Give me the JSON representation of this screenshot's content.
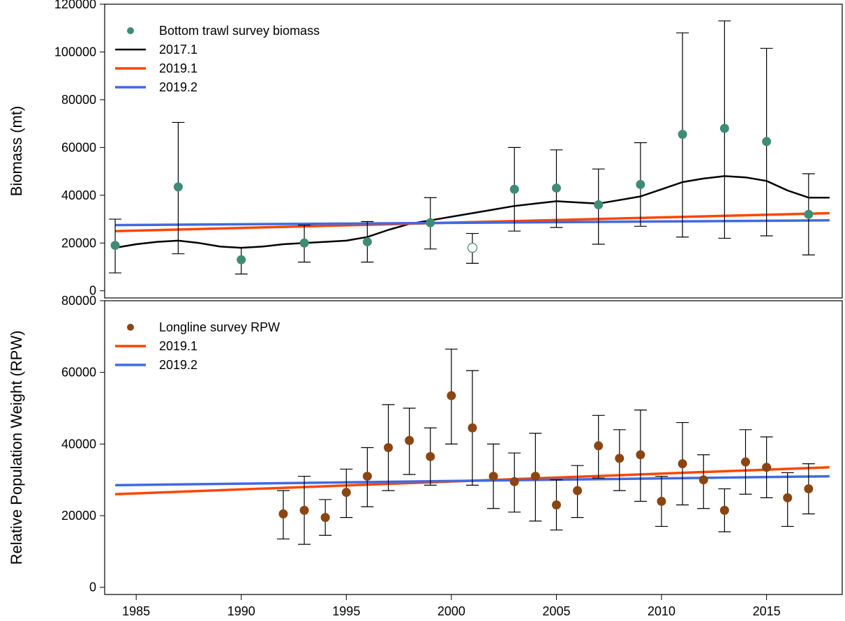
{
  "chart_data": [
    {
      "type": "line",
      "panel": "top",
      "ylabel": "Biomass (mt)",
      "xlim": [
        1983.5,
        2018.6
      ],
      "ylim": [
        -3000,
        120000
      ],
      "yticks": [
        0,
        20000,
        40000,
        60000,
        80000,
        100000,
        120000
      ],
      "grid": false,
      "legend_position": "top-left",
      "legend": [
        "Bottom trawl survey biomass",
        "2017.1",
        "2019.1",
        "2019.2"
      ],
      "colors": {
        "points": "#3f8c76",
        "2017.1": "#000000",
        "2019.1": "#ff4500",
        "2019.2": "#4169e1"
      },
      "points": {
        "name": "Bottom trawl survey biomass",
        "x": [
          1984,
          1987,
          1990,
          1993,
          1996,
          1999,
          2001,
          2003,
          2005,
          2007,
          2009,
          2011,
          2013,
          2015,
          2017
        ],
        "y": [
          19000,
          43500,
          13000,
          20000,
          20500,
          28500,
          18000,
          42500,
          43000,
          36000,
          44500,
          65500,
          68000,
          62500,
          32000
        ],
        "low": [
          7500,
          15500,
          7000,
          12000,
          12000,
          17500,
          11500,
          25000,
          26500,
          19500,
          27000,
          22500,
          22000,
          23000,
          15000
        ],
        "high": [
          30000,
          70500,
          18000,
          27500,
          29000,
          39000,
          24000,
          60000,
          59000,
          51000,
          62000,
          108000,
          113000,
          101500,
          49000
        ],
        "open": [
          false,
          false,
          false,
          false,
          false,
          false,
          true,
          false,
          false,
          false,
          false,
          false,
          false,
          false,
          false
        ]
      },
      "series": [
        {
          "name": "2017.1",
          "x": [
            1984,
            1985,
            1986,
            1987,
            1988,
            1989,
            1990,
            1991,
            1992,
            1993,
            1994,
            1995,
            1996,
            1997,
            1998,
            1999,
            2000,
            2001,
            2002,
            2003,
            2004,
            2005,
            2006,
            2007,
            2008,
            2009,
            2010,
            2011,
            2012,
            2013,
            2014,
            2015,
            2016,
            2017,
            2018
          ],
          "y": [
            18000,
            19500,
            20500,
            21000,
            20000,
            18500,
            18000,
            18500,
            19500,
            20000,
            20500,
            21000,
            22500,
            25500,
            28000,
            29500,
            31000,
            32500,
            34000,
            35500,
            36500,
            37500,
            37000,
            36500,
            38000,
            39500,
            42500,
            45500,
            47000,
            48000,
            47500,
            46000,
            42000,
            39000,
            39000
          ]
        },
        {
          "name": "2019.1",
          "x": [
            1984,
            2018
          ],
          "y": [
            25000,
            32500
          ]
        },
        {
          "name": "2019.2",
          "x": [
            1984,
            2018
          ],
          "y": [
            27500,
            29500
          ]
        }
      ]
    },
    {
      "type": "line",
      "panel": "bottom",
      "ylabel": "Relative Population Weight (RPW)",
      "xlim": [
        1983.5,
        2018.6
      ],
      "ylim": [
        -2000,
        80000
      ],
      "yticks": [
        0,
        20000,
        40000,
        60000,
        80000
      ],
      "xticks": [
        1985,
        1990,
        1995,
        2000,
        2005,
        2010,
        2015
      ],
      "grid": false,
      "legend_position": "top-left",
      "legend": [
        "Longline survey RPW",
        "2019.1",
        "2019.2"
      ],
      "colors": {
        "points": "#8b4513",
        "2019.1": "#ff4500",
        "2019.2": "#4169e1"
      },
      "points": {
        "name": "Longline survey RPW",
        "x": [
          1992,
          1993,
          1994,
          1995,
          1996,
          1997,
          1998,
          1999,
          2000,
          2001,
          2002,
          2003,
          2004,
          2005,
          2006,
          2007,
          2008,
          2009,
          2010,
          2011,
          2012,
          2013,
          2014,
          2015,
          2016,
          2017
        ],
        "y": [
          20500,
          21500,
          19500,
          26500,
          31000,
          39000,
          41000,
          36500,
          53500,
          44500,
          31000,
          29500,
          31000,
          23000,
          27000,
          39500,
          36000,
          37000,
          24000,
          34500,
          30000,
          21500,
          35000,
          33500,
          25000,
          27500
        ],
        "low": [
          13500,
          12000,
          14500,
          19500,
          22500,
          27000,
          31500,
          28500,
          40000,
          28500,
          22000,
          21000,
          18500,
          16000,
          19500,
          30500,
          27000,
          24000,
          17000,
          23000,
          22000,
          15500,
          26000,
          25000,
          17000,
          20500
        ],
        "high": [
          27000,
          31000,
          24500,
          33000,
          39000,
          51000,
          50000,
          44500,
          66500,
          60500,
          40000,
          37500,
          43000,
          30000,
          34000,
          48000,
          44000,
          49500,
          31000,
          46000,
          37000,
          27500,
          44000,
          42000,
          32000,
          34500
        ]
      },
      "series": [
        {
          "name": "2019.1",
          "x": [
            1984,
            2018
          ],
          "y": [
            26000,
            33500
          ]
        },
        {
          "name": "2019.2",
          "x": [
            1984,
            2018
          ],
          "y": [
            28500,
            31000
          ]
        }
      ]
    }
  ]
}
